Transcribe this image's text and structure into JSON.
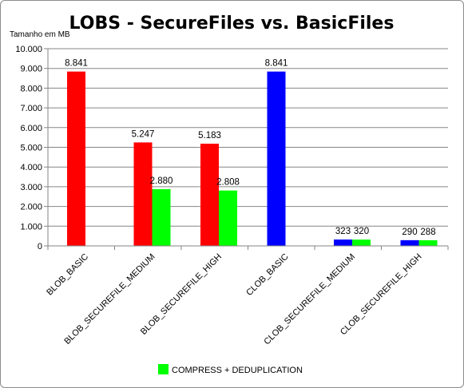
{
  "chart_data": {
    "type": "bar",
    "title": "LOBS - SecureFiles vs. BasicFiles",
    "ylabel": "Tamanho em MB",
    "xlabel": "",
    "ylim": [
      0,
      10000
    ],
    "y_tick_labels": [
      "0",
      "1.000",
      "2.000",
      "3.000",
      "4.000",
      "5.000",
      "6.000",
      "7.000",
      "8.000",
      "9.000",
      "10.000"
    ],
    "grid": true,
    "legend_position": "bottom",
    "categories": [
      "BLOB_BASIC",
      "BLOB_SECUREFILE_MEDIUM",
      "BLOB_SECUREFILE_HIGH",
      "CLOB_BASIC",
      "CLOB_SECUREFILE_MEDIUM",
      "CLOB_SECUREFILE_HIGH"
    ],
    "series": [
      {
        "values": [
          8841,
          5247,
          5183,
          8841,
          323,
          290
        ],
        "labels": [
          "8.841",
          "5.247",
          "5.183",
          "8.841",
          "323",
          "290"
        ],
        "colors": [
          "#ff0000",
          "#ff0000",
          "#ff0000",
          "#0000ff",
          "#0000ff",
          "#0000ff"
        ]
      },
      {
        "name": "COMPRESS + DEDUPLICATION",
        "values": [
          null,
          2880,
          2808,
          null,
          320,
          288
        ],
        "labels": [
          null,
          "2.880",
          "2.808",
          null,
          "320",
          "288"
        ],
        "colors": [
          "#00ff00",
          "#00ff00",
          "#00ff00",
          "#00ff00",
          "#00ff00",
          "#00ff00"
        ]
      }
    ]
  }
}
